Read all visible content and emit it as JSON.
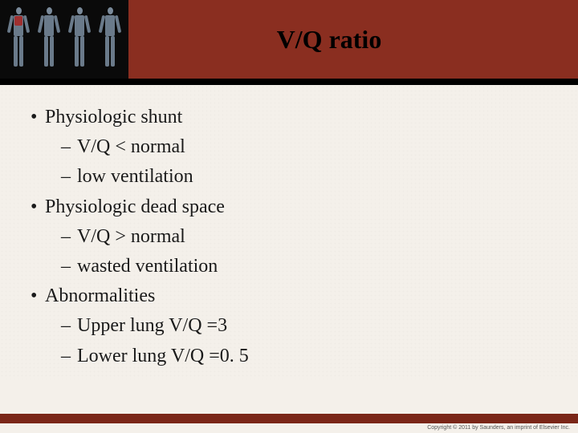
{
  "header": {
    "title": "V/Q ratio",
    "title_color": "#000000",
    "banner_color": "#8a2e20",
    "image_box_bg": "#0a0a0a",
    "figure_body_color": "#6a7a8a",
    "figure_highlight_color": "#a03030"
  },
  "content": {
    "background_color": "#f4f0ea",
    "text_color": "#1a1a1a",
    "font_size_pt": 18,
    "items": [
      {
        "type": "bullet",
        "text": "Physiologic shunt"
      },
      {
        "type": "dash",
        "text": "V/Q < normal"
      },
      {
        "type": "dash",
        "text": "low ventilation"
      },
      {
        "type": "bullet",
        "text": "Physiologic dead space"
      },
      {
        "type": "dash",
        "text": "V/Q > normal"
      },
      {
        "type": "dash",
        "text": "wasted ventilation"
      },
      {
        "type": "bullet",
        "text": "Abnormalities"
      },
      {
        "type": "dash",
        "text": "Upper lung V/Q =3"
      },
      {
        "type": "dash",
        "text": "Lower lung V/Q =0. 5"
      }
    ]
  },
  "footer": {
    "bar_color": "#7a2618",
    "copyright": "Copyright © 2011 by Saunders, an imprint of Elsevier Inc."
  }
}
